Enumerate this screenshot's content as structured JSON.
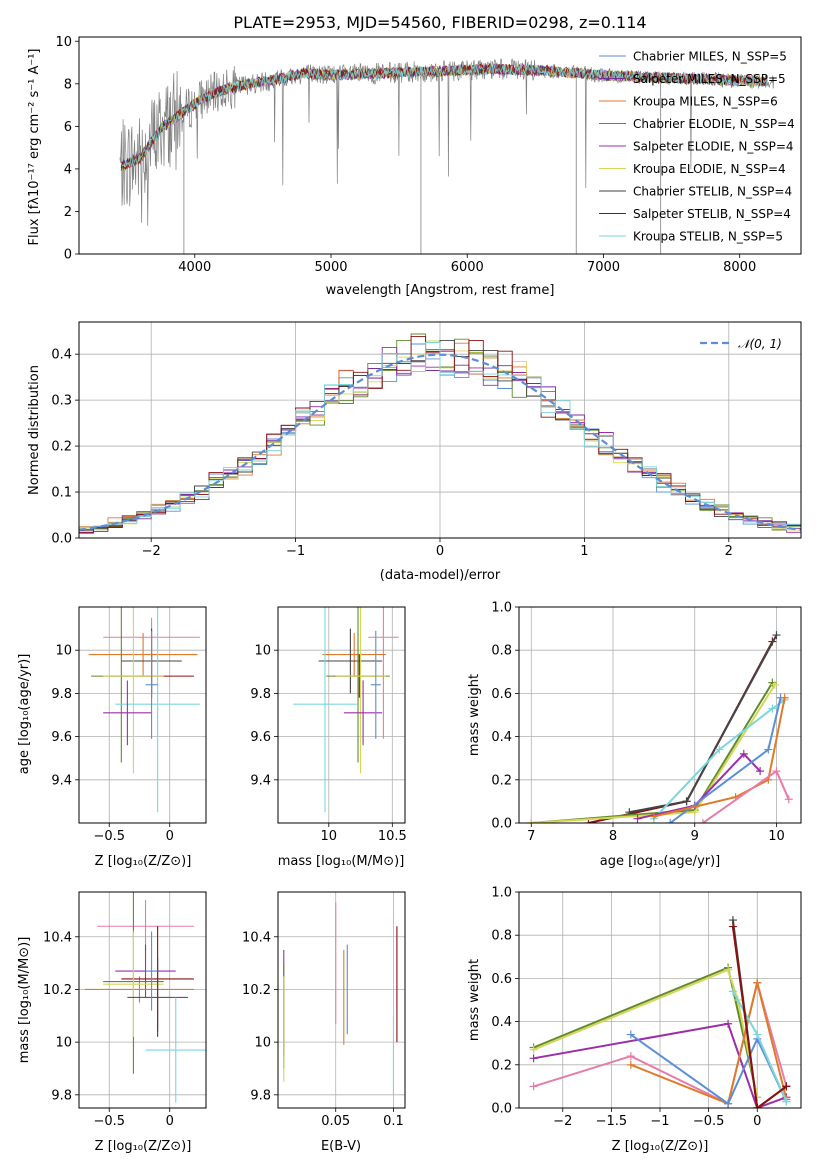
{
  "title": "PLATE=2953, MJD=54560, FIBERID=0298, z=0.114",
  "chart_data": [
    {
      "id": "spectrum",
      "type": "line",
      "xlabel": "wavelength [Angstrom, rest frame]",
      "ylabel": "Flux [fλ10⁻¹⁷ erg cm⁻² s⁻¹ A⁻¹]",
      "xlim": [
        3150,
        8450
      ],
      "ylim": [
        0,
        10.2
      ],
      "xticks": [
        4000,
        5000,
        6000,
        7000,
        8000
      ],
      "yticks": [
        0,
        2,
        4,
        6,
        8,
        10
      ],
      "grid": false,
      "legend_position": "right",
      "legend": [
        {
          "label": "Chabrier MILES, N_SSP=5",
          "color": "#5b8ed6"
        },
        {
          "label": "Salpeter MILES, N_SSP=5",
          "color": "#7b2f9f"
        },
        {
          "label": "Kroupa MILES, N_SSP=6",
          "color": "#e07a2b"
        },
        {
          "label": "Chabrier ELODIE, N_SSP=4",
          "color": "#5f8c2a"
        },
        {
          "label": "Salpeter ELODIE, N_SSP=4",
          "color": "#9c2ea8"
        },
        {
          "label": "Kroupa ELODIE, N_SSP=4",
          "color": "#d6d65a"
        },
        {
          "label": "Chabrier STELIB, N_SSP=4",
          "color": "#444444"
        },
        {
          "label": "Salpeter STELIB, N_SSP=4",
          "color": "#8b1010"
        },
        {
          "label": "Kroupa STELIB, N_SSP=5",
          "color": "#7dd6dc"
        }
      ],
      "data_color": "#808080",
      "model_trend": {
        "x": [
          3450,
          3600,
          3750,
          3900,
          4050,
          4200,
          4400,
          4600,
          4800,
          5000,
          5400,
          5800,
          6200,
          6600,
          7000,
          7400,
          7800,
          8200
        ],
        "y": [
          4.1,
          4.5,
          5.9,
          6.6,
          7.3,
          7.7,
          8.0,
          8.2,
          8.5,
          8.4,
          8.5,
          8.6,
          8.7,
          8.6,
          8.4,
          8.3,
          8.2,
          8.1
        ]
      }
    },
    {
      "id": "residuals",
      "type": "line",
      "xlabel": "(data-model)/error",
      "ylabel": "Normed distribution",
      "xlim": [
        -2.5,
        2.5
      ],
      "ylim": [
        0,
        0.47
      ],
      "xticks": [
        -2,
        -1,
        0,
        1,
        2
      ],
      "yticks": [
        0.0,
        0.1,
        0.2,
        0.3,
        0.4
      ],
      "grid": true,
      "legend": [
        {
          "label": "𝒩(0, 1)",
          "color": "#5b8ed6"
        }
      ],
      "legend_position": "top-right"
    },
    {
      "id": "age-vs-Z",
      "type": "scatter",
      "xlabel": "Z [log₁₀(Z/Z⊙)]",
      "ylabel": "age  [log₁₀(age/yr)]",
      "xlim": [
        -0.75,
        0.3
      ],
      "ylim": [
        9.2,
        10.2
      ],
      "xticks": [
        -0.5,
        0.0
      ],
      "yticks": [
        9.4,
        9.6,
        9.8,
        10.0
      ],
      "grid": true,
      "points": [
        {
          "x": -0.15,
          "y": 10.06,
          "xerr": 0.4,
          "yerr": 0.09,
          "color": "#e87ca8"
        },
        {
          "x": -0.22,
          "y": 9.98,
          "xerr": 0.45,
          "yerr": 0.1,
          "color": "#e07a2b"
        },
        {
          "x": -0.15,
          "y": 9.95,
          "xerr": 0.25,
          "yerr": 0.15,
          "color": "#444444"
        },
        {
          "x": -0.15,
          "y": 9.88,
          "xerr": 0.35,
          "yerr": 0.1,
          "color": "#8b1010"
        },
        {
          "x": -0.4,
          "y": 9.88,
          "xerr": 0.25,
          "yerr": 0.4,
          "color": "#5f8c2a"
        },
        {
          "x": -0.3,
          "y": 9.88,
          "xerr": 0.25,
          "yerr": 0.45,
          "color": "#d6d65a"
        },
        {
          "x": -0.1,
          "y": 9.75,
          "xerr": 0.35,
          "yerr": 0.5,
          "color": "#7dd6dc"
        },
        {
          "x": -0.35,
          "y": 9.71,
          "xerr": 0.2,
          "yerr": 0.15,
          "color": "#9c2ea8"
        },
        {
          "x": -0.15,
          "y": 9.84,
          "xerr": 0.05,
          "yerr": 0.25,
          "color": "#5b8ed6"
        }
      ]
    },
    {
      "id": "age-vs-mass",
      "type": "scatter",
      "xlabel": "mass [log₁₀(M/M⊙)]",
      "xlim": [
        9.6,
        10.6
      ],
      "ylim": [
        9.2,
        10.2
      ],
      "xticks": [
        10.0,
        10.5
      ],
      "yticks": [
        9.4,
        9.6,
        9.8,
        10.0
      ],
      "grid": true,
      "points": [
        {
          "x": 10.43,
          "y": 10.06,
          "xerr": 0.12,
          "yerr": 0.47,
          "color": "#e87ca8"
        },
        {
          "x": 10.2,
          "y": 9.98,
          "xerr": 0.25,
          "yerr": 0.1,
          "color": "#e07a2b"
        },
        {
          "x": 10.17,
          "y": 9.95,
          "xerr": 0.25,
          "yerr": 0.15,
          "color": "#444444"
        },
        {
          "x": 10.24,
          "y": 9.88,
          "xerr": 0.2,
          "yerr": 0.1,
          "color": "#8b1010"
        },
        {
          "x": 10.23,
          "y": 9.88,
          "xerr": 0.25,
          "yerr": 0.4,
          "color": "#5f8c2a"
        },
        {
          "x": 10.25,
          "y": 9.88,
          "xerr": 0.2,
          "yerr": 0.45,
          "color": "#d6d65a"
        },
        {
          "x": 9.97,
          "y": 9.75,
          "xerr": 0.25,
          "yerr": 0.5,
          "color": "#7dd6dc"
        },
        {
          "x": 10.27,
          "y": 9.71,
          "xerr": 0.15,
          "yerr": 0.15,
          "color": "#9c2ea8"
        },
        {
          "x": 10.37,
          "y": 9.84,
          "xerr": 0.04,
          "yerr": 0.25,
          "color": "#5b8ed6"
        }
      ]
    },
    {
      "id": "weight-vs-age",
      "type": "line",
      "xlabel": "age  [log₁₀(age/yr)]",
      "ylabel": "mass weight",
      "xlim": [
        6.85,
        10.3
      ],
      "ylim": [
        0,
        1.0
      ],
      "xticks": [
        7,
        8,
        9,
        10
      ],
      "yticks": [
        0.0,
        0.2,
        0.4,
        0.6,
        0.8,
        1.0
      ],
      "grid": true,
      "series": [
        {
          "color": "#8b1010",
          "x": [
            7.7,
            8.9,
            9.95
          ],
          "y": [
            0.0,
            0.1,
            0.84
          ]
        },
        {
          "color": "#444444",
          "x": [
            8.2,
            8.9,
            10.0
          ],
          "y": [
            0.05,
            0.1,
            0.87
          ]
        },
        {
          "color": "#5f8c2a",
          "x": [
            7.0,
            9.0,
            9.95
          ],
          "y": [
            0.0,
            0.06,
            0.65
          ]
        },
        {
          "color": "#d6d65a",
          "x": [
            7.0,
            9.0,
            9.98
          ],
          "y": [
            0.0,
            0.05,
            0.64
          ]
        },
        {
          "color": "#7dd6dc",
          "x": [
            8.5,
            9.3,
            9.95,
            10.1
          ],
          "y": [
            0.02,
            0.34,
            0.53,
            0.57
          ]
        },
        {
          "color": "#9c2ea8",
          "x": [
            8.3,
            9.0,
            9.6,
            9.8
          ],
          "y": [
            0.02,
            0.08,
            0.32,
            0.24
          ]
        },
        {
          "color": "#5b8ed6",
          "x": [
            8.7,
            9.9,
            10.05
          ],
          "y": [
            0.0,
            0.34,
            0.58
          ]
        },
        {
          "color": "#e07a2b",
          "x": [
            8.5,
            9.5,
            9.9,
            10.1
          ],
          "y": [
            0.03,
            0.12,
            0.2,
            0.58
          ]
        },
        {
          "color": "#e87ca8",
          "x": [
            9.1,
            10.0,
            10.15
          ],
          "y": [
            0.0,
            0.24,
            0.11
          ]
        }
      ]
    },
    {
      "id": "mass-vs-Z",
      "type": "scatter",
      "xlabel": "Z [log₁₀(Z/Z⊙)]",
      "ylabel": "mass [log₁₀(M/M⊙)]",
      "xlim": [
        -0.75,
        0.3
      ],
      "ylim": [
        9.75,
        10.57
      ],
      "xticks": [
        -0.5,
        0.0
      ],
      "yticks": [
        9.8,
        10.0,
        10.2,
        10.4
      ],
      "grid": true,
      "points": [
        {
          "x": -0.2,
          "y": 10.44,
          "xerr": 0.4,
          "yerr": 0.1,
          "color": "#e87ca8"
        },
        {
          "x": -0.2,
          "y": 10.27,
          "xerr": 0.25,
          "yerr": 0.1,
          "color": "#9c2ea8"
        },
        {
          "x": -0.25,
          "y": 10.2,
          "xerr": 0.45,
          "yerr": 0.05,
          "color": "#e07a2b"
        },
        {
          "x": -0.1,
          "y": 10.24,
          "xerr": 0.3,
          "yerr": 0.2,
          "color": "#8b1010"
        },
        {
          "x": -0.3,
          "y": 10.23,
          "xerr": 0.25,
          "yerr": 0.35,
          "color": "#5f8c2a"
        },
        {
          "x": -0.3,
          "y": 10.22,
          "xerr": 0.25,
          "yerr": 0.2,
          "color": "#d6d65a"
        },
        {
          "x": -0.1,
          "y": 10.17,
          "xerr": 0.25,
          "yerr": 0.15,
          "color": "#444444"
        },
        {
          "x": 0.05,
          "y": 9.97,
          "xerr": 0.25,
          "yerr": 0.2,
          "color": "#7dd6dc"
        },
        {
          "x": -0.15,
          "y": 10.27,
          "xerr": 0.05,
          "yerr": 0.15,
          "color": "#5b8ed6"
        }
      ]
    },
    {
      "id": "mass-vs-EBV",
      "type": "scatter",
      "xlabel": "E(B-V)",
      "xlim": [
        0.0,
        0.11
      ],
      "ylim": [
        9.75,
        10.57
      ],
      "xticks": [
        0.05,
        0.1
      ],
      "yticks": [
        9.8,
        10.0,
        10.2,
        10.4
      ],
      "grid": true,
      "points": [
        {
          "x": 0.005,
          "y": 10.15,
          "yerr": 0.2,
          "color": "#9c2ea8"
        },
        {
          "x": 0.005,
          "y": 10.1,
          "yerr": 0.2,
          "color": "#5f8c2a"
        },
        {
          "x": 0.005,
          "y": 10.05,
          "yerr": 0.2,
          "color": "#d6d65a"
        },
        {
          "x": 0.05,
          "y": 10.3,
          "yerr": 0.23,
          "color": "#e87ca8"
        },
        {
          "x": 0.057,
          "y": 10.17,
          "yerr": 0.18,
          "color": "#e07a2b"
        },
        {
          "x": 0.06,
          "y": 10.2,
          "yerr": 0.17,
          "color": "#5b8ed6"
        },
        {
          "x": 0.103,
          "y": 10.22,
          "yerr": 0.22,
          "color": "#8b1010"
        },
        {
          "x": 0.1,
          "y": 9.95,
          "yerr": 0.15,
          "color": "#7dd6dc"
        }
      ]
    },
    {
      "id": "weight-vs-Z",
      "type": "line",
      "xlabel": "Z [log₁₀(Z/Z⊙)]",
      "ylabel": "mass weight",
      "xlim": [
        -2.45,
        0.45
      ],
      "ylim": [
        0,
        1.0
      ],
      "xticks": [
        -2.0,
        -1.5,
        -1.0,
        -0.5,
        0.0
      ],
      "yticks": [
        0.0,
        0.2,
        0.4,
        0.6,
        0.8,
        1.0
      ],
      "grid": true,
      "series": [
        {
          "color": "#5f8c2a",
          "x": [
            -2.3,
            -0.3,
            0.0
          ],
          "y": [
            0.28,
            0.65,
            0.05
          ]
        },
        {
          "color": "#d6d65a",
          "x": [
            -2.3,
            -0.3,
            -0.2,
            0.0
          ],
          "y": [
            0.27,
            0.64,
            0.5,
            0.05
          ]
        },
        {
          "color": "#9c2ea8",
          "x": [
            -2.3,
            -0.3,
            0.0,
            0.3
          ],
          "y": [
            0.23,
            0.39,
            0.0,
            0.05
          ]
        },
        {
          "color": "#e87ca8",
          "x": [
            -2.3,
            -1.3,
            -0.3,
            0.0,
            0.3
          ],
          "y": [
            0.1,
            0.24,
            0.02,
            0.58,
            0.1
          ]
        },
        {
          "color": "#e07a2b",
          "x": [
            -1.3,
            -0.3,
            0.0,
            0.3
          ],
          "y": [
            0.2,
            0.02,
            0.58,
            0.04
          ]
        },
        {
          "color": "#5b8ed6",
          "x": [
            -1.3,
            -0.3,
            0.0,
            0.3
          ],
          "y": [
            0.34,
            0.02,
            0.32,
            0.03
          ]
        },
        {
          "color": "#7dd6dc",
          "x": [
            -0.25,
            0.0,
            0.3
          ],
          "y": [
            0.54,
            0.34,
            0.03
          ]
        },
        {
          "color": "#444444",
          "x": [
            -0.25,
            0.0,
            0.3
          ],
          "y": [
            0.87,
            0.0,
            0.1
          ]
        },
        {
          "color": "#8b1010",
          "x": [
            -0.25,
            0.0,
            0.3
          ],
          "y": [
            0.84,
            0.0,
            0.1
          ]
        }
      ]
    }
  ]
}
